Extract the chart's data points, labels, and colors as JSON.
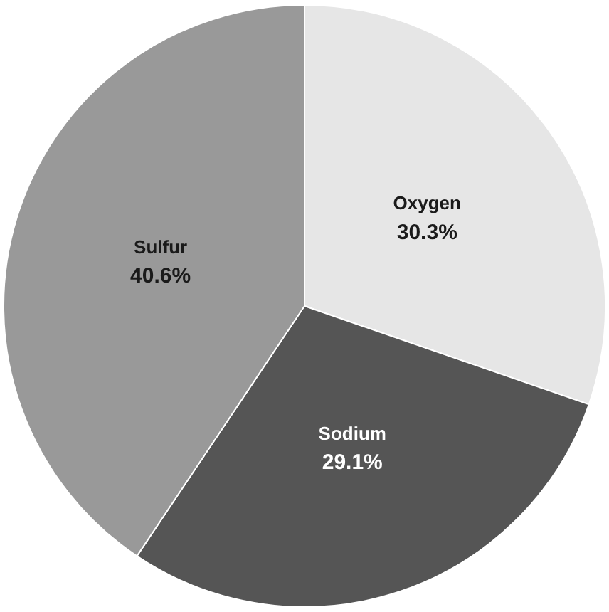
{
  "chart_data": {
    "type": "pie",
    "categories": [
      "Oxygen",
      "Sodium",
      "Sulfur"
    ],
    "values": [
      30.3,
      29.1,
      40.6
    ],
    "colors": [
      "#e6e6e6",
      "#555555",
      "#999999"
    ],
    "value_labels": [
      "30.3%",
      "29.1%",
      "40.6%"
    ],
    "legend": false
  }
}
